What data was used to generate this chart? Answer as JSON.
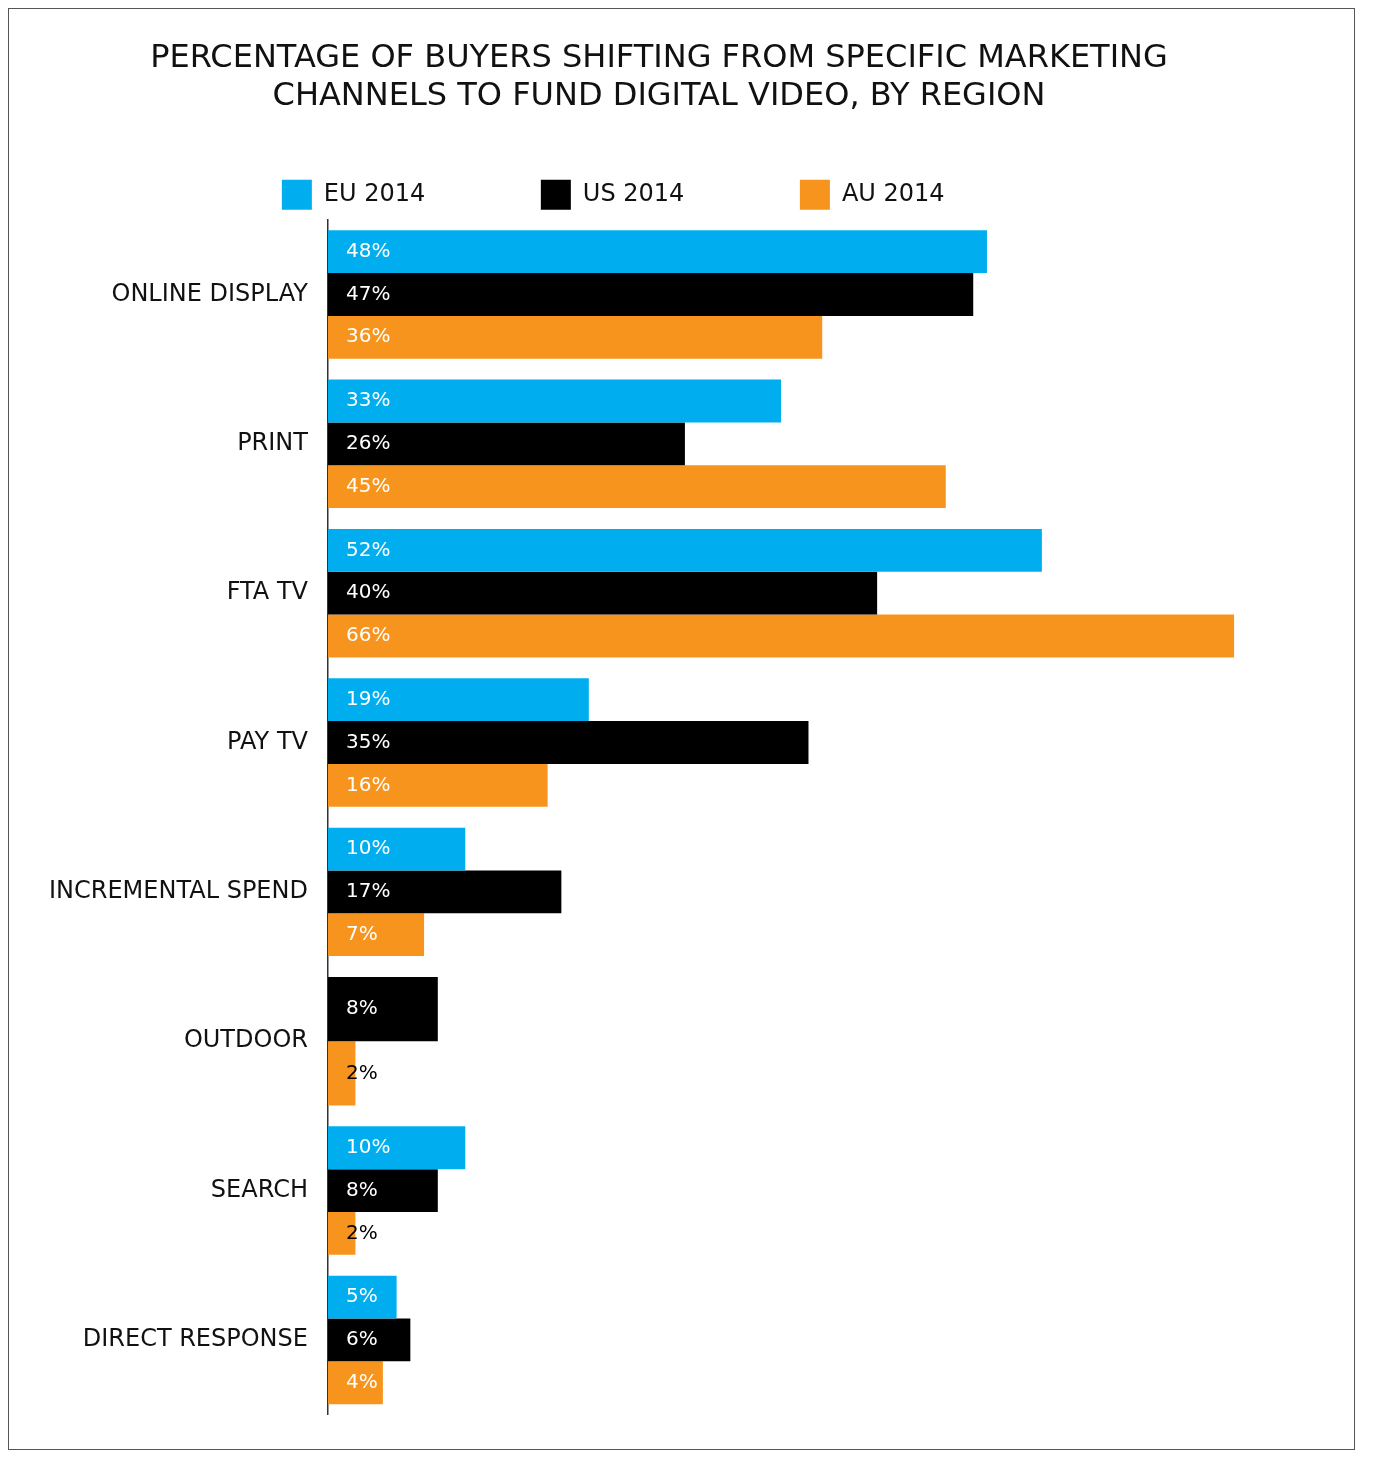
{
  "chart_data": {
    "type": "bar",
    "orientation": "horizontal",
    "title": [
      "PERCENTAGE OF BUYERS SHIFTING FROM SPECIFIC MARKETING",
      "CHANNELS TO FUND DIGITAL VIDEO, BY REGION"
    ],
    "categories": [
      "ONLINE DISPLAY",
      "PRINT",
      "FTA TV",
      "PAY TV",
      "INCREMENTAL SPEND",
      "OUTDOOR",
      "SEARCH",
      "DIRECT RESPONSE"
    ],
    "series": [
      {
        "name": "EU 2014",
        "color": "#00aeef",
        "values": [
          48,
          33,
          52,
          19,
          10,
          null,
          10,
          5
        ],
        "value_labels": [
          "48%",
          "33%",
          "52%",
          "19%",
          "10%",
          null,
          "10%",
          "5%"
        ]
      },
      {
        "name": "US 2014",
        "color": "#000000",
        "values": [
          47,
          26,
          40,
          35,
          17,
          8,
          8,
          6
        ],
        "value_labels": [
          "47%",
          "26%",
          "40%",
          "35%",
          "17%",
          "8%",
          "8%",
          "6%"
        ]
      },
      {
        "name": "AU 2014",
        "color": "#f7941d",
        "values": [
          36,
          45,
          66,
          16,
          7,
          2,
          2,
          4
        ],
        "value_labels": [
          "36%",
          "45%",
          "66%",
          "16%",
          "7%",
          "2%",
          "2%",
          "4%"
        ]
      }
    ],
    "legend": "top"
  }
}
